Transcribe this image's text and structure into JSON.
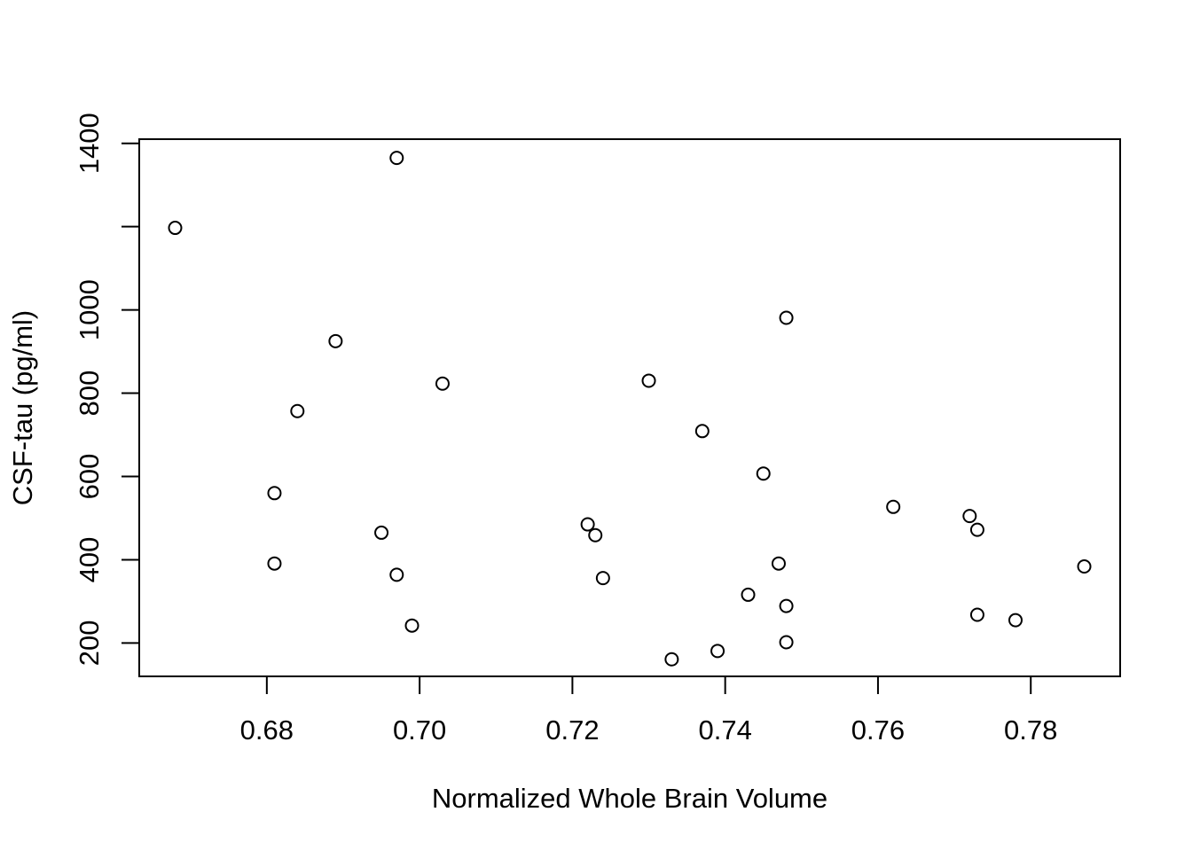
{
  "chart_data": {
    "type": "scatter",
    "title": "",
    "xlabel": "Normalized Whole Brain Volume",
    "ylabel": "CSF-tau (pg/ml)",
    "xlim": [
      0.6633,
      0.7917
    ],
    "ylim": [
      120,
      1410
    ],
    "xticks": [
      0.68,
      0.7,
      0.72,
      0.74,
      0.76,
      0.78
    ],
    "xtick_labels": [
      "0.68",
      "0.70",
      "0.72",
      "0.74",
      "0.76",
      "0.78"
    ],
    "yticks": [
      200,
      400,
      600,
      800,
      1000,
      1200,
      1400
    ],
    "ytick_labels": [
      "200",
      "400",
      "600",
      "800",
      "1000",
      "",
      "1400"
    ],
    "grid": false,
    "legend": "none",
    "marker": "open-circle",
    "points": [
      {
        "x": 0.668,
        "y": 1197
      },
      {
        "x": 0.681,
        "y": 560
      },
      {
        "x": 0.681,
        "y": 391
      },
      {
        "x": 0.684,
        "y": 757
      },
      {
        "x": 0.689,
        "y": 925
      },
      {
        "x": 0.695,
        "y": 465
      },
      {
        "x": 0.697,
        "y": 1365
      },
      {
        "x": 0.697,
        "y": 364
      },
      {
        "x": 0.699,
        "y": 242
      },
      {
        "x": 0.703,
        "y": 823
      },
      {
        "x": 0.722,
        "y": 485
      },
      {
        "x": 0.723,
        "y": 459
      },
      {
        "x": 0.724,
        "y": 356
      },
      {
        "x": 0.73,
        "y": 830
      },
      {
        "x": 0.733,
        "y": 161
      },
      {
        "x": 0.737,
        "y": 709
      },
      {
        "x": 0.739,
        "y": 181
      },
      {
        "x": 0.743,
        "y": 316
      },
      {
        "x": 0.745,
        "y": 607
      },
      {
        "x": 0.747,
        "y": 391
      },
      {
        "x": 0.748,
        "y": 981
      },
      {
        "x": 0.748,
        "y": 289
      },
      {
        "x": 0.748,
        "y": 202
      },
      {
        "x": 0.762,
        "y": 527
      },
      {
        "x": 0.772,
        "y": 505
      },
      {
        "x": 0.773,
        "y": 472
      },
      {
        "x": 0.773,
        "y": 268
      },
      {
        "x": 0.778,
        "y": 255
      },
      {
        "x": 0.787,
        "y": 384
      }
    ]
  }
}
